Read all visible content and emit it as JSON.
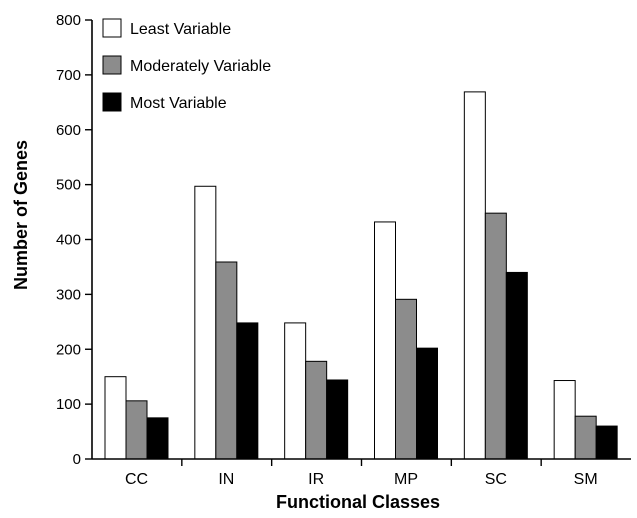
{
  "chart_data": {
    "type": "bar",
    "title": "",
    "xlabel": "Functional Classes",
    "ylabel": "Number of Genes",
    "categories": [
      "CC",
      "IN",
      "IR",
      "MP",
      "SC",
      "SM"
    ],
    "series": [
      {
        "name": "Least Variable",
        "color": "#ffffff",
        "values": [
          150,
          497,
          248,
          432,
          669,
          143
        ]
      },
      {
        "name": "Moderately Variable",
        "color": "#8c8c8c",
        "values": [
          106,
          359,
          178,
          291,
          448,
          78
        ]
      },
      {
        "name": "Most Variable",
        "color": "#000000",
        "values": [
          75,
          248,
          144,
          202,
          340,
          60
        ]
      }
    ],
    "ylim": [
      0,
      800
    ],
    "yticks": [
      "0",
      "100",
      "200",
      "300",
      "400",
      "500",
      "600",
      "700",
      "800"
    ],
    "grid": false,
    "legend": "top-left"
  }
}
